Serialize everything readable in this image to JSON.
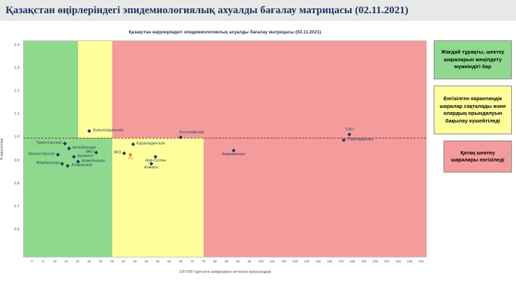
{
  "header": {
    "title": "Қазақстан өңірлеріндегі эпидемиологиялық ахуалды бағалау матрицасы  (02.11.2021)"
  },
  "chart_data": {
    "type": "scatter",
    "title": "Қазақстан өңірлеріндегі эпидемиологиялық ахуалды бағалау матрицасы (02.11.2021)",
    "xlabel": "100 000 тұрғынға шаққандағы апталық аурушаңдық",
    "ylabel": "R көрсеткіші",
    "x_ticks": [
      0,
      5,
      10,
      15,
      20,
      25,
      30,
      35,
      40,
      45,
      50,
      55,
      60,
      65,
      70,
      75,
      80,
      85,
      90,
      95,
      105,
      115,
      125,
      135,
      145,
      155,
      165,
      175,
      185,
      195,
      205,
      215,
      225,
      235,
      245
    ],
    "y_ticks": [
      1.4,
      1.3,
      1.2,
      1.1,
      1.0,
      0.9,
      0.8,
      0.7,
      0.6
    ],
    "y_range": [
      0.48,
      1.42
    ],
    "threshold_y": 1.0,
    "colors": {
      "green": "#8fd98f",
      "yellow": "#ffff9c",
      "red": "#f49c9c",
      "point": "#1f3864",
      "rk_point": "#e8762c",
      "threshold": "#8b3030"
    },
    "zones": [
      {
        "x0": null,
        "x1": 20,
        "y0": 1.0,
        "y1": null,
        "color": "green"
      },
      {
        "x0": 20,
        "x1": 35,
        "y0": 1.0,
        "y1": null,
        "color": "yellow"
      },
      {
        "x0": 35,
        "x1": null,
        "y0": 1.0,
        "y1": null,
        "color": "red"
      },
      {
        "x0": null,
        "x1": 35,
        "y0": null,
        "y1": 1.0,
        "color": "green"
      },
      {
        "x0": 35,
        "x1": 75,
        "y0": null,
        "y1": 1.0,
        "color": "yellow"
      },
      {
        "x0": 75,
        "x1": null,
        "y0": null,
        "y1": 1.0,
        "color": "red"
      }
    ],
    "points": [
      {
        "name": "Туркестанская",
        "x": 14,
        "y": 0.975,
        "side": "left"
      },
      {
        "name": "Актюбинская",
        "x": 16,
        "y": 0.952,
        "side": "right"
      },
      {
        "name": "Мангистауская",
        "x": 11,
        "y": 0.925,
        "side": "left"
      },
      {
        "name": "Шымкент",
        "x": 18,
        "y": 0.918,
        "side": "right"
      },
      {
        "name": "ВКО",
        "x": 28,
        "y": 0.935,
        "side": "left"
      },
      {
        "name": "Алматинская",
        "x": 20,
        "y": 0.896,
        "side": "right"
      },
      {
        "name": "Жамбылская",
        "x": 13,
        "y": 0.885,
        "side": "left"
      },
      {
        "name": "Атырауская",
        "x": 15.5,
        "y": 0.878,
        "side": "right"
      },
      {
        "name": "Кызылординская",
        "x": 25,
        "y": 1.03,
        "side": "right"
      },
      {
        "name": "Карагандинская",
        "x": 44,
        "y": 0.972,
        "side": "right"
      },
      {
        "name": "ЗКО",
        "x": 40,
        "y": 0.932,
        "side": "left"
      },
      {
        "name": "РК",
        "x": 43,
        "y": 0.925,
        "side": "below",
        "c": "rk"
      },
      {
        "name": "Нур-Султан",
        "x": 54,
        "y": 0.916,
        "side": "below"
      },
      {
        "name": "Алматы",
        "x": 52,
        "y": 0.886,
        "side": "below"
      },
      {
        "name": "Костанайская",
        "x": 65,
        "y": 1.001,
        "side": "above-right"
      },
      {
        "name": "Акмолинская",
        "x": 88,
        "y": 0.945,
        "side": "below"
      },
      {
        "name": "СКО",
        "x": 183,
        "y": 1.015,
        "side": "above"
      },
      {
        "name": "Павлодарская",
        "x": 178,
        "y": 0.988,
        "side": "right"
      }
    ]
  },
  "legend": {
    "items": [
      {
        "text": "Жағдай тұрақты, шектеу шараларын жеңілдету мүмкіндігі бар",
        "color": "green"
      },
      {
        "text": "Енгізілген карантиндік шаралар сақталады және олардың орындалуын бақылау күшейтіледі",
        "color": "yellow"
      },
      {
        "text": "Қатаң шектеу шаралары енгізіледі",
        "color": "red"
      }
    ]
  }
}
